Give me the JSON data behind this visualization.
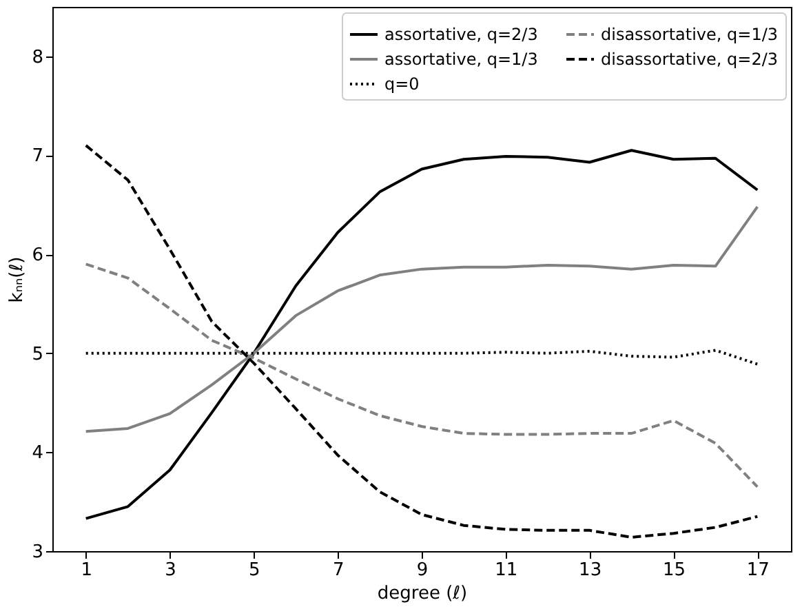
{
  "chart_data": {
    "type": "line",
    "xlabel": "degree (ℓ)",
    "ylabel": "kₙₙ(ℓ)",
    "x": [
      1,
      2,
      3,
      4,
      5,
      6,
      7,
      8,
      9,
      10,
      11,
      12,
      13,
      14,
      15,
      16,
      17
    ],
    "xlim": [
      0.2,
      17.8
    ],
    "xticks": [
      1,
      3,
      5,
      7,
      9,
      11,
      13,
      15,
      17
    ],
    "ylim": [
      3,
      8.5
    ],
    "yticks": [
      3,
      4,
      5,
      6,
      7,
      8
    ],
    "grid": false,
    "legend": "top right",
    "marker": "none",
    "series": [
      {
        "name": "assortative, q=2/3",
        "color": "#000000",
        "line_style": "solid",
        "values": [
          3.33,
          3.45,
          3.82,
          4.4,
          5.0,
          5.68,
          6.22,
          6.63,
          6.86,
          6.96,
          6.99,
          6.98,
          6.93,
          7.05,
          6.96,
          6.97,
          6.65
        ]
      },
      {
        "name": "assortative, q=1/3",
        "color": "#808080",
        "line_style": "solid",
        "values": [
          4.21,
          4.24,
          4.39,
          4.68,
          5.0,
          5.38,
          5.63,
          5.79,
          5.85,
          5.87,
          5.87,
          5.89,
          5.88,
          5.85,
          5.89,
          5.88,
          6.48
        ]
      },
      {
        "name": "q=0",
        "color": "#000000",
        "line_style": "dotted",
        "values": [
          5.0,
          5.0,
          5.0,
          5.0,
          5.0,
          5.0,
          5.0,
          5.0,
          5.0,
          5.0,
          5.01,
          5.0,
          5.02,
          4.97,
          4.96,
          5.03,
          4.89
        ]
      },
      {
        "name": "disassortative, q=1/3",
        "color": "#808080",
        "line_style": "dashed",
        "values": [
          5.9,
          5.76,
          5.45,
          5.13,
          4.95,
          4.74,
          4.54,
          4.37,
          4.26,
          4.19,
          4.18,
          4.18,
          4.19,
          4.19,
          4.32,
          4.09,
          3.65
        ]
      },
      {
        "name": "disassortative, q=2/3",
        "color": "#000000",
        "line_style": "dashed",
        "values": [
          7.1,
          6.75,
          6.05,
          5.32,
          4.9,
          4.44,
          3.97,
          3.6,
          3.37,
          3.26,
          3.22,
          3.21,
          3.21,
          3.14,
          3.18,
          3.24,
          3.35
        ]
      }
    ]
  }
}
